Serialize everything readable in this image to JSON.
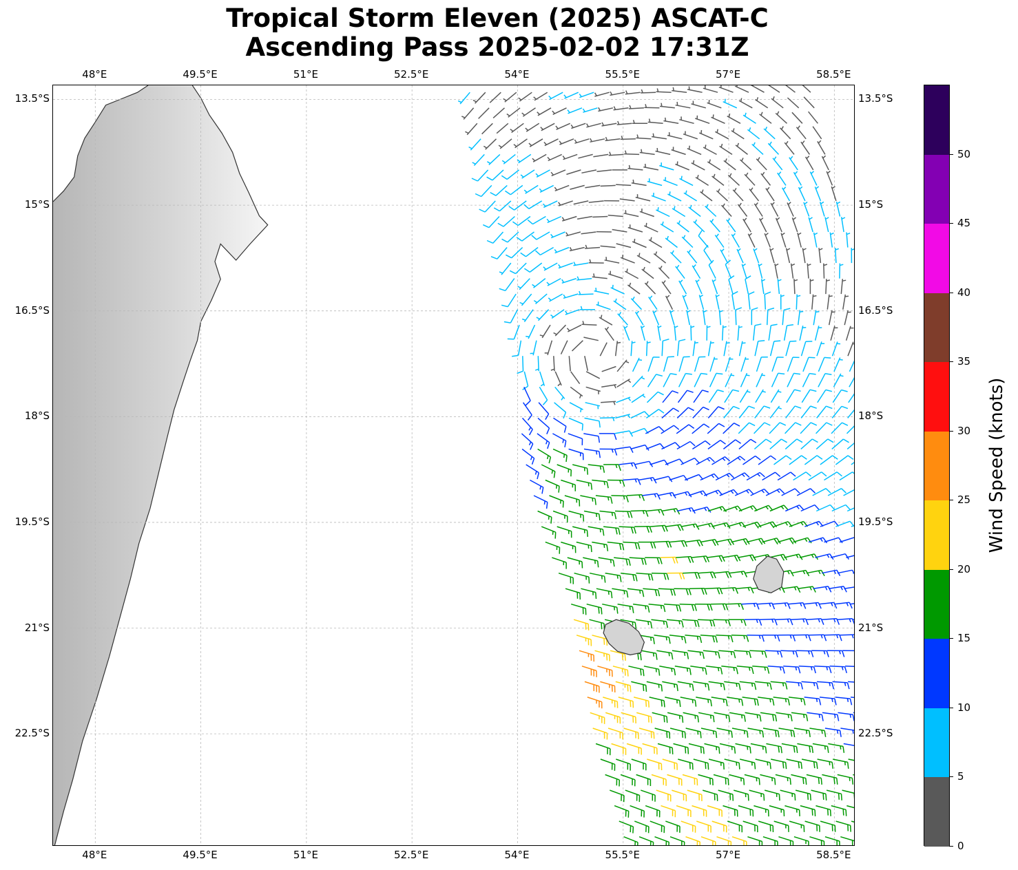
{
  "title": {
    "line1": "Tropical Storm Eleven (2025) ASCAT-C",
    "line2": "Ascending Pass 2025-02-02 17:31Z"
  },
  "map": {
    "lon_range": [
      47.4,
      58.8
    ],
    "lat_range": [
      -24.1,
      -13.3
    ],
    "lon_ticks": [
      {
        "value": 48.0,
        "label": "48°E"
      },
      {
        "value": 49.5,
        "label": "49.5°E"
      },
      {
        "value": 51.0,
        "label": "51°E"
      },
      {
        "value": 52.5,
        "label": "52.5°E"
      },
      {
        "value": 54.0,
        "label": "54°E"
      },
      {
        "value": 55.5,
        "label": "55.5°E"
      },
      {
        "value": 57.0,
        "label": "57°E"
      },
      {
        "value": 58.5,
        "label": "58.5°E"
      }
    ],
    "lat_ticks": [
      {
        "value": -13.5,
        "label": "13.5°S"
      },
      {
        "value": -15.0,
        "label": "15°S"
      },
      {
        "value": -16.5,
        "label": "16.5°S"
      },
      {
        "value": -18.0,
        "label": "18°S"
      },
      {
        "value": -19.5,
        "label": "19.5°S"
      },
      {
        "value": -21.0,
        "label": "21°S"
      },
      {
        "value": -22.5,
        "label": "22.5°S"
      }
    ],
    "gridlines": true,
    "coastline_color": "#333333",
    "terrain_shading": "grayscale elevation over land",
    "land_labels": [],
    "madagascar_coast_lonlat": [
      [
        49.38,
        -13.3
      ],
      [
        49.5,
        -13.48
      ],
      [
        49.62,
        -13.72
      ],
      [
        49.8,
        -13.98
      ],
      [
        49.95,
        -14.25
      ],
      [
        50.05,
        -14.55
      ],
      [
        50.18,
        -14.82
      ],
      [
        50.33,
        -15.15
      ],
      [
        50.45,
        -15.28
      ],
      [
        50.2,
        -15.55
      ],
      [
        50.0,
        -15.78
      ],
      [
        49.78,
        -15.55
      ],
      [
        49.7,
        -15.8
      ],
      [
        49.78,
        -16.05
      ],
      [
        49.65,
        -16.35
      ],
      [
        49.5,
        -16.65
      ],
      [
        49.45,
        -16.92
      ],
      [
        49.35,
        -17.2
      ],
      [
        49.25,
        -17.5
      ],
      [
        49.12,
        -17.9
      ],
      [
        49.02,
        -18.3
      ],
      [
        48.9,
        -18.8
      ],
      [
        48.78,
        -19.3
      ],
      [
        48.62,
        -19.8
      ],
      [
        48.5,
        -20.3
      ],
      [
        48.35,
        -20.85
      ],
      [
        48.2,
        -21.4
      ],
      [
        48.02,
        -22.0
      ],
      [
        47.82,
        -22.6
      ],
      [
        47.68,
        -23.15
      ],
      [
        47.55,
        -23.6
      ],
      [
        47.42,
        -24.1
      ]
    ],
    "madagascar_west_coast_lonlat": [
      [
        47.4,
        -14.95
      ],
      [
        47.55,
        -14.8
      ],
      [
        47.7,
        -14.6
      ],
      [
        47.75,
        -14.3
      ],
      [
        47.85,
        -14.05
      ],
      [
        48.0,
        -13.82
      ],
      [
        48.15,
        -13.58
      ],
      [
        48.35,
        -13.5
      ],
      [
        48.6,
        -13.4
      ],
      [
        48.75,
        -13.3
      ]
    ],
    "reunion_outline_lonlat": [
      [
        55.25,
        -20.95
      ],
      [
        55.4,
        -20.88
      ],
      [
        55.58,
        -20.93
      ],
      [
        55.72,
        -21.05
      ],
      [
        55.8,
        -21.2
      ],
      [
        55.75,
        -21.35
      ],
      [
        55.6,
        -21.38
      ],
      [
        55.42,
        -21.33
      ],
      [
        55.3,
        -21.22
      ],
      [
        55.22,
        -21.07
      ]
    ],
    "mauritius_outline_lonlat": [
      [
        57.55,
        -19.98
      ],
      [
        57.68,
        -20.02
      ],
      [
        57.78,
        -20.2
      ],
      [
        57.75,
        -20.42
      ],
      [
        57.6,
        -20.5
      ],
      [
        57.42,
        -20.45
      ],
      [
        57.35,
        -20.3
      ],
      [
        57.4,
        -20.12
      ]
    ],
    "swath": {
      "west_edge": [
        [
          53.3,
          -13.3
        ],
        [
          53.65,
          -14.8
        ],
        [
          53.95,
          -16.0
        ],
        [
          54.1,
          -17.4
        ],
        [
          54.05,
          -18.4
        ],
        [
          54.25,
          -19.2
        ],
        [
          54.4,
          -19.8
        ],
        [
          54.75,
          -20.6
        ],
        [
          55.1,
          -22.6
        ],
        [
          55.55,
          -24.1
        ]
      ],
      "east_edge": [
        [
          58.2,
          -13.3
        ],
        [
          58.8,
          -16.0
        ],
        [
          58.8,
          -24.1
        ]
      ]
    },
    "circulation_center": {
      "lon": 54.85,
      "lat": -17.45
    },
    "barb_grid_spacing_deg": 0.22
  },
  "colorbar": {
    "title": "Wind Speed (knots)",
    "range": [
      0,
      55
    ],
    "ticks": [
      0,
      5,
      10,
      15,
      20,
      25,
      30,
      35,
      40,
      45,
      50
    ],
    "ticks_text": [
      "0",
      "5",
      "10",
      "15",
      "20",
      "25",
      "30",
      "35",
      "40",
      "45",
      "50"
    ],
    "bins": [
      {
        "from": 0,
        "to": 5,
        "color": "#595959"
      },
      {
        "from": 5,
        "to": 10,
        "color": "#00bfff"
      },
      {
        "from": 10,
        "to": 15,
        "color": "#0038ff"
      },
      {
        "from": 15,
        "to": 20,
        "color": "#009900"
      },
      {
        "from": 20,
        "to": 25,
        "color": "#ffd30f"
      },
      {
        "from": 25,
        "to": 30,
        "color": "#ff8c0f"
      },
      {
        "from": 30,
        "to": 35,
        "color": "#ff0f0f"
      },
      {
        "from": 35,
        "to": 40,
        "color": "#7f3d2b"
      },
      {
        "from": 40,
        "to": 45,
        "color": "#f20ae6"
      },
      {
        "from": 45,
        "to": 50,
        "color": "#8300b3"
      },
      {
        "from": 50,
        "to": 55,
        "color": "#2d005c"
      }
    ]
  }
}
